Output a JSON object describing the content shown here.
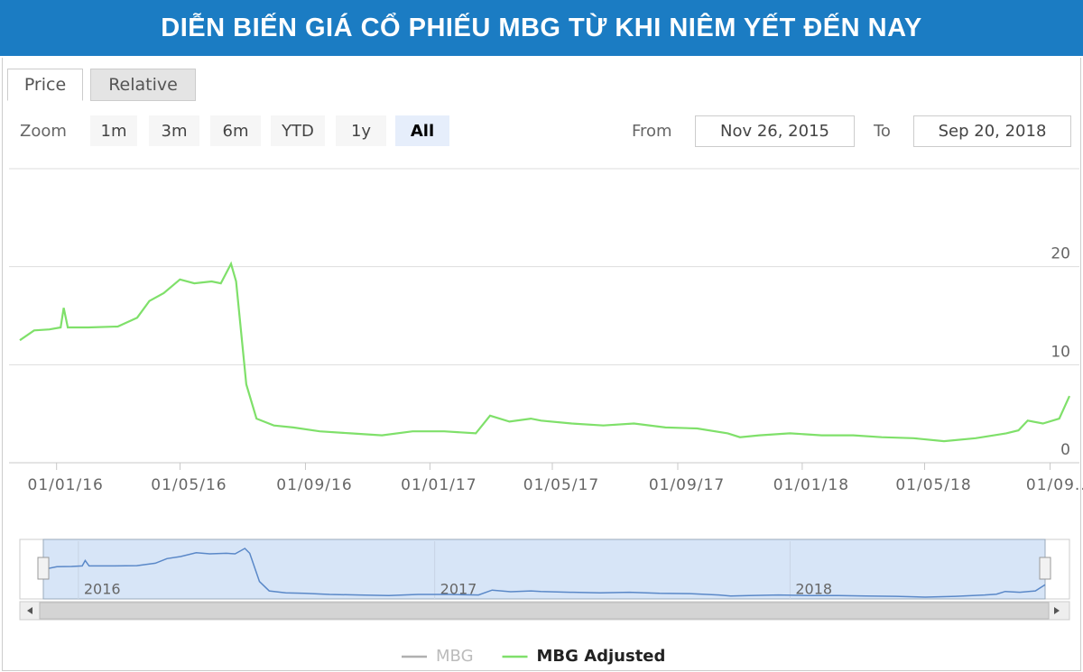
{
  "chart_data": {
    "type": "line",
    "title": "DIỄN BIẾN GIÁ CỔ PHIẾU MBG TỪ KHI NIÊM YẾT ĐẾN NAY",
    "range_selector": {
      "tabs": [
        "Price",
        "Relative"
      ],
      "active_tab": "Price",
      "zoom_label": "Zoom",
      "buttons": [
        "1m",
        "3m",
        "6m",
        "YTD",
        "1y",
        "All"
      ],
      "selected": "All",
      "from_label": "From",
      "from": "Nov 26, 2015",
      "to_label": "To",
      "to": "Sep 20, 2018"
    },
    "x": [
      "2015-11-26",
      "2015-12-10",
      "2015-12-25",
      "2016-01-05",
      "2016-01-08",
      "2016-01-12",
      "2016-02-01",
      "2016-03-01",
      "2016-03-20",
      "2016-04-01",
      "2016-04-15",
      "2016-05-01",
      "2016-05-15",
      "2016-06-01",
      "2016-06-10",
      "2016-06-20",
      "2016-06-25",
      "2016-07-05",
      "2016-07-15",
      "2016-08-01",
      "2016-08-20",
      "2016-09-15",
      "2016-10-15",
      "2016-11-15",
      "2016-12-15",
      "2017-01-15",
      "2017-02-15",
      "2017-03-01",
      "2017-03-20",
      "2017-04-10",
      "2017-04-20",
      "2017-05-20",
      "2017-06-20",
      "2017-07-20",
      "2017-08-20",
      "2017-09-20",
      "2017-10-20",
      "2017-11-01",
      "2017-11-20",
      "2017-12-20",
      "2018-01-20",
      "2018-02-20",
      "2018-03-20",
      "2018-04-20",
      "2018-05-20",
      "2018-06-20",
      "2018-07-20",
      "2018-08-01",
      "2018-08-10",
      "2018-08-25",
      "2018-09-10",
      "2018-09-20"
    ],
    "series": [
      {
        "name": "MBG",
        "color": "#b0b0b0",
        "visible": false
      },
      {
        "name": "MBG Adjusted",
        "color": "#7fe06a",
        "visible": true,
        "values": [
          12.5,
          13.5,
          13.6,
          13.8,
          15.8,
          13.8,
          13.8,
          13.9,
          14.8,
          16.5,
          17.3,
          18.7,
          18.3,
          18.5,
          18.3,
          20.3,
          18.5,
          8,
          4.5,
          3.8,
          3.6,
          3.2,
          3.0,
          2.8,
          3.2,
          3.2,
          3.0,
          4.8,
          4.2,
          4.5,
          4.3,
          4.0,
          3.8,
          4.0,
          3.6,
          3.5,
          3.0,
          2.6,
          2.8,
          3.0,
          2.8,
          2.8,
          2.6,
          2.5,
          2.2,
          2.5,
          3.0,
          3.3,
          4.3,
          4.0,
          4.5,
          6.8
        ]
      }
    ],
    "xlim": [
      "2015-11-26",
      "2018-09-20"
    ],
    "xticks": [
      {
        "value": "2016-01-01",
        "label": "01/01/16"
      },
      {
        "value": "2016-05-01",
        "label": "01/05/16"
      },
      {
        "value": "2016-09-01",
        "label": "01/09/16"
      },
      {
        "value": "2017-01-01",
        "label": "01/01/17"
      },
      {
        "value": "2017-05-01",
        "label": "01/05/17"
      },
      {
        "value": "2017-09-01",
        "label": "01/09/17"
      },
      {
        "value": "2018-01-01",
        "label": "01/01/18"
      },
      {
        "value": "2018-05-01",
        "label": "01/05/18"
      },
      {
        "value": "2018-09-01",
        "label": "01/09..."
      }
    ],
    "ylim": [
      0,
      30
    ],
    "yticks": [
      0,
      10,
      20
    ],
    "grid": true,
    "navigator_ticks": [
      {
        "value": "2016-01-01",
        "label": "2016"
      },
      {
        "value": "2017-01-01",
        "label": "2017"
      },
      {
        "value": "2018-01-01",
        "label": "2018"
      }
    ]
  }
}
